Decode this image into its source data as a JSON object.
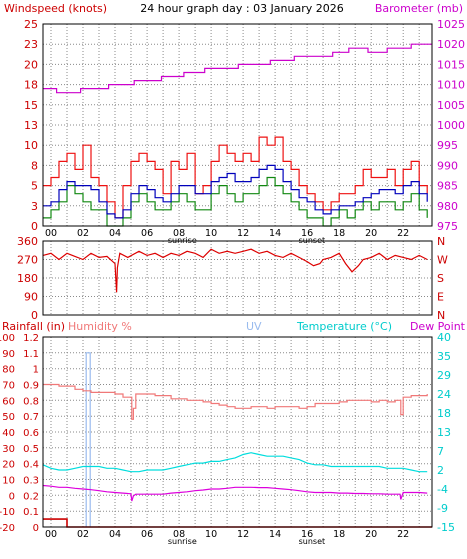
{
  "chart_data": [
    {
      "type": "line",
      "panel": "wind-baro",
      "title": "24 hour graph day : 03 January 2026",
      "ylabel_left": "Windspeed (knots)",
      "ylabel_right": "Barometer (mb)",
      "ylim_left": [
        0,
        25
      ],
      "ylim_right": [
        975,
        1025
      ],
      "y_ticks_left": [
        "0",
        "3",
        "5",
        "8",
        "10",
        "13",
        "15",
        "18",
        "20",
        "23",
        "25"
      ],
      "y_ticks_right": [
        "975",
        "980",
        "985",
        "990",
        "995",
        "1000",
        "1005",
        "1010",
        "1015",
        "1020",
        "1025"
      ],
      "x_ticks": [
        "00",
        "02",
        "04",
        "06",
        "08",
        "10",
        "12",
        "14",
        "16",
        "18",
        "20",
        "22"
      ],
      "x_markers": [
        "sunrise",
        "sunset"
      ],
      "x_marker_hours": [
        8.2,
        16.3
      ],
      "xlim": [
        -0.5,
        23.8
      ],
      "grid": true,
      "colors": {
        "gust": "#ee1010",
        "average": "#0000bb",
        "direction_avg": "#118811",
        "barometer": "#cc00cc",
        "text_left": "#cc0000",
        "text_right": "#cc00cc",
        "title": "#000000"
      },
      "series": [
        {
          "name": "Barometer (mb)",
          "axis": "right",
          "x": [
            -0.5,
            0.3,
            0.35,
            1.8,
            1.85,
            3.5,
            3.6,
            5.1,
            5.2,
            6.8,
            6.9,
            8.2,
            8.3,
            9.5,
            9.6,
            11.6,
            11.7,
            13.6,
            13.7,
            15.1,
            15.2,
            17.5,
            17.6,
            18.5,
            18.6,
            19.7,
            19.8,
            20.9,
            21.0,
            22.4,
            22.5,
            23.8
          ],
          "values": [
            1009,
            1009,
            1008,
            1008,
            1009,
            1009,
            1010,
            1010,
            1011,
            1011,
            1012,
            1012,
            1013,
            1013,
            1014,
            1014,
            1015,
            1015,
            1016,
            1016,
            1017,
            1017,
            1018,
            1018,
            1019,
            1019,
            1018,
            1018,
            1019,
            1019,
            1020,
            1020
          ]
        },
        {
          "name": "gust",
          "axis": "left",
          "x": [
            -0.5,
            0.0,
            0.5,
            1.0,
            1.5,
            2.0,
            2.5,
            3.0,
            3.5,
            4.0,
            4.5,
            5.0,
            5.5,
            6.0,
            6.5,
            7.0,
            7.5,
            8.0,
            8.5,
            9.0,
            9.5,
            10.0,
            10.5,
            11.0,
            11.5,
            12.0,
            12.5,
            13.0,
            13.5,
            14.0,
            14.5,
            15.0,
            15.5,
            16.0,
            16.5,
            17.0,
            17.5,
            18.0,
            18.5,
            19.0,
            19.5,
            20.0,
            20.5,
            21.0,
            21.5,
            22.0,
            22.5,
            23.0,
            23.5
          ],
          "values": [
            5,
            6,
            8,
            9,
            7,
            10,
            6,
            5,
            3,
            1,
            5,
            8,
            9,
            8,
            7,
            4,
            8,
            7,
            9,
            4,
            5,
            8,
            10,
            9,
            8,
            9,
            8,
            11,
            10,
            11,
            8,
            7,
            5,
            4,
            3,
            2,
            3,
            4,
            4,
            5,
            7,
            6,
            6,
            7,
            5,
            7,
            8,
            5,
            4
          ]
        },
        {
          "name": "average",
          "axis": "left",
          "x": [
            -0.5,
            0.0,
            0.5,
            1.0,
            1.5,
            2.0,
            2.5,
            3.0,
            3.5,
            4.0,
            4.5,
            5.0,
            5.5,
            6.0,
            6.5,
            7.0,
            7.5,
            8.0,
            8.5,
            9.0,
            9.5,
            10.0,
            10.5,
            11.0,
            11.5,
            12.0,
            12.5,
            13.0,
            13.5,
            14.0,
            14.5,
            15.0,
            15.5,
            16.0,
            16.5,
            17.0,
            17.5,
            18.0,
            18.5,
            19.0,
            19.5,
            20.0,
            20.5,
            21.0,
            21.5,
            22.0,
            22.5,
            23.0,
            23.5
          ],
          "values": [
            2.5,
            3,
            4.5,
            5.5,
            5,
            5,
            4.5,
            3,
            1.5,
            1,
            2,
            4,
            5,
            4.5,
            3.5,
            3,
            4,
            5,
            5,
            4,
            4,
            5.5,
            6,
            6.5,
            5.5,
            5.5,
            6,
            7,
            7.5,
            7,
            5.5,
            4.5,
            3.5,
            3,
            2,
            1.5,
            2,
            2.5,
            2.5,
            3,
            3.5,
            4,
            4.5,
            4.5,
            4,
            5,
            5.5,
            4,
            3
          ]
        },
        {
          "name": "direction_avg",
          "axis": "left",
          "x": [
            -0.5,
            0.0,
            0.5,
            1.0,
            1.5,
            2.0,
            2.5,
            3.0,
            3.5,
            4.0,
            4.5,
            5.0,
            5.5,
            6.0,
            6.5,
            7.0,
            7.5,
            8.0,
            8.5,
            9.0,
            9.5,
            10.0,
            10.5,
            11.0,
            11.5,
            12.0,
            12.5,
            13.0,
            13.5,
            14.0,
            14.5,
            15.0,
            15.5,
            16.0,
            16.5,
            17.0,
            17.5,
            18.0,
            18.5,
            19.0,
            19.5,
            20.0,
            20.5,
            21.0,
            21.5,
            22.0,
            22.5,
            23.0,
            23.5
          ],
          "values": [
            1,
            2,
            3,
            5,
            4,
            3,
            2,
            2,
            0,
            0,
            1,
            3,
            4,
            3,
            2,
            2,
            3,
            4,
            3,
            2,
            2,
            4,
            5,
            4,
            3,
            4,
            4,
            5,
            6,
            5,
            4,
            3,
            2,
            1,
            1,
            0,
            1,
            2,
            1,
            2,
            3,
            2,
            3,
            3,
            2,
            3,
            4,
            2,
            1
          ]
        }
      ]
    },
    {
      "type": "line",
      "panel": "wind-direction",
      "ylim_left": [
        0,
        360
      ],
      "y_ticks_left": [
        "360",
        "270",
        "180",
        "90",
        "0"
      ],
      "y_ticks_right": [
        "N",
        "W",
        "S",
        "E",
        "N"
      ],
      "xlim": [
        -0.5,
        23.8
      ],
      "grid": true,
      "colors": {
        "line": "#dd0000",
        "text": "#cc0000"
      },
      "series": [
        {
          "name": "Wind direction",
          "x": [
            -0.5,
            0.0,
            0.5,
            1.0,
            1.5,
            2.0,
            2.5,
            3.0,
            3.5,
            4.0,
            4.1,
            4.15,
            4.3,
            4.8,
            5.5,
            6.0,
            6.5,
            7.0,
            7.5,
            8.0,
            8.5,
            9.0,
            9.5,
            10.0,
            10.5,
            11.0,
            11.5,
            12.0,
            12.5,
            13.0,
            13.5,
            14.0,
            14.5,
            15.0,
            15.5,
            16.0,
            16.4,
            16.8,
            17.0,
            17.5,
            18.0,
            18.4,
            18.8,
            19.2,
            19.5,
            20.0,
            20.5,
            21.0,
            21.5,
            22.0,
            22.5,
            23.0,
            23.5
          ],
          "values": [
            290,
            300,
            270,
            300,
            285,
            270,
            300,
            280,
            285,
            250,
            110,
            230,
            300,
            280,
            310,
            290,
            300,
            280,
            300,
            290,
            310,
            300,
            280,
            320,
            300,
            310,
            300,
            310,
            320,
            300,
            310,
            290,
            280,
            300,
            280,
            260,
            240,
            250,
            270,
            280,
            300,
            250,
            210,
            240,
            270,
            280,
            300,
            270,
            290,
            280,
            270,
            290,
            270
          ]
        }
      ]
    },
    {
      "type": "line",
      "panel": "temp-humidity-rain",
      "ylabel_rain": "Rainfall (in)",
      "ylabel_humidity": "Humidity %",
      "ylabel_uv": "UV",
      "ylabel_temp": "Temperature (°C)",
      "ylabel_dew": "Dew Point",
      "ylim_humidity": [
        -20,
        100
      ],
      "ylim_rain": [
        0,
        1.2
      ],
      "ylim_temp": [
        -15,
        40
      ],
      "y_ticks_humidity": [
        "100",
        "90",
        "80",
        "70",
        "60",
        "50",
        "40",
        "30",
        "20",
        "10",
        "0",
        "-10",
        "-20"
      ],
      "y_ticks_rain": [
        "1.2",
        "1.1",
        "1",
        "0.9",
        "0.8",
        "0.7",
        "0.6",
        "0.5",
        "0.4",
        "0.3",
        "0.2",
        "0.1",
        "0"
      ],
      "y_ticks_temp": [
        "40",
        "35",
        "29",
        "24",
        "18",
        "13",
        "7",
        "2",
        "-4",
        "-9",
        "-15"
      ],
      "x_ticks": [
        "00",
        "02",
        "04",
        "06",
        "08",
        "10",
        "12",
        "14",
        "16",
        "18",
        "20",
        "22"
      ],
      "x_markers": [
        "sunrise",
        "sunset"
      ],
      "x_marker_hours": [
        8.2,
        16.3
      ],
      "xlim": [
        -0.5,
        23.8
      ],
      "grid": true,
      "colors": {
        "humidity": "#f07878",
        "temperature": "#00dddd",
        "dew_point": "#dd00dd",
        "rain": "#cc0000",
        "uv": "#99bbee",
        "text_rain": "#cc0000",
        "text_humidity": "#f07878",
        "text_uv": "#99bbee",
        "text_temp": "#00cccc",
        "text_dew": "#cc00cc"
      },
      "series": [
        {
          "name": "Humidity %",
          "axis": "humidity",
          "x": [
            -0.5,
            0.0,
            0.5,
            1.0,
            1.5,
            2.0,
            2.5,
            3.0,
            3.5,
            4.0,
            4.5,
            5.0,
            5.05,
            5.15,
            5.3,
            6.0,
            6.5,
            7.0,
            7.5,
            8.0,
            8.5,
            9.0,
            9.5,
            10.0,
            10.5,
            11.0,
            11.5,
            12.0,
            12.5,
            13.0,
            13.5,
            14.0,
            14.5,
            15.0,
            15.5,
            16.0,
            16.5,
            17.0,
            17.5,
            18.0,
            18.5,
            19.0,
            19.5,
            20.0,
            20.5,
            21.0,
            21.5,
            21.8,
            21.85,
            22.0,
            22.5,
            23.0,
            23.5
          ],
          "values": [
            70,
            70,
            69,
            69,
            67,
            66,
            65,
            65,
            65,
            64,
            62,
            62,
            48,
            55,
            64,
            64,
            63,
            63,
            61,
            61,
            60,
            60,
            59,
            58,
            57,
            56,
            55,
            55,
            56,
            56,
            55,
            56,
            56,
            56,
            55,
            56,
            58,
            58,
            58,
            59,
            60,
            60,
            60,
            59,
            60,
            59,
            60,
            60,
            51,
            62,
            63,
            63,
            64
          ]
        },
        {
          "name": "Temperature (°C)",
          "axis": "temp",
          "x": [
            -0.5,
            0.0,
            0.5,
            1.0,
            1.5,
            2.0,
            2.5,
            3.0,
            3.5,
            4.0,
            4.5,
            5.0,
            5.5,
            6.0,
            6.5,
            7.0,
            7.5,
            8.0,
            8.5,
            9.0,
            9.5,
            10.0,
            10.5,
            11.0,
            11.5,
            12.0,
            12.5,
            13.0,
            13.5,
            14.0,
            14.5,
            15.0,
            15.5,
            16.0,
            16.5,
            17.0,
            17.5,
            18.0,
            18.5,
            19.0,
            19.5,
            20.0,
            20.5,
            21.0,
            21.5,
            22.0,
            22.5,
            23.0,
            23.5
          ],
          "values": [
            3,
            2,
            1.5,
            1.5,
            2,
            2.5,
            2.5,
            2.5,
            2,
            2,
            1.5,
            1,
            1,
            1.5,
            1.5,
            1.5,
            2,
            2.5,
            3,
            3.5,
            3.5,
            4,
            4,
            4.5,
            5,
            6,
            6.5,
            6,
            5.5,
            5.5,
            5.5,
            5,
            4.5,
            3.5,
            3,
            3,
            2.5,
            2.5,
            2.5,
            2.5,
            2.5,
            2.5,
            2.5,
            2,
            2,
            2,
            1.5,
            1,
            1
          ]
        },
        {
          "name": "Dew Point",
          "axis": "temp",
          "x": [
            -0.5,
            0.0,
            0.5,
            1.0,
            1.5,
            2.0,
            2.5,
            3.0,
            3.5,
            4.0,
            4.5,
            5.0,
            5.05,
            5.15,
            5.3,
            6.0,
            6.5,
            7.0,
            7.5,
            8.0,
            8.5,
            9.0,
            9.5,
            10.0,
            10.5,
            11.0,
            11.5,
            12.0,
            12.5,
            13.0,
            13.5,
            14.0,
            14.5,
            15.0,
            15.5,
            16.0,
            16.5,
            17.0,
            17.5,
            18.0,
            18.5,
            19.0,
            19.5,
            20.0,
            20.5,
            21.0,
            21.5,
            21.8,
            21.85,
            22.0,
            22.5,
            23.0,
            23.5
          ],
          "values": [
            -3,
            -3.2,
            -3.5,
            -3.5,
            -3.8,
            -4,
            -4.2,
            -4.5,
            -4.8,
            -5,
            -5.2,
            -5.4,
            -7.5,
            -6,
            -5.5,
            -5.5,
            -5.5,
            -5.5,
            -5.2,
            -5,
            -4.8,
            -4.5,
            -4.3,
            -4,
            -4,
            -3.8,
            -3.5,
            -3.5,
            -3.5,
            -3.6,
            -3.6,
            -3.8,
            -4,
            -4.2,
            -4.5,
            -4.8,
            -5,
            -5,
            -5,
            -5.2,
            -5.2,
            -5.3,
            -5.3,
            -5.4,
            -5.4,
            -5.5,
            -5.5,
            -5.5,
            -7,
            -5,
            -5,
            -5,
            -5.2
          ]
        },
        {
          "name": "UV",
          "axis": "rain",
          "x": [
            2.2,
            2.2,
            2.45,
            2.45
          ],
          "values": [
            0,
            1.1,
            1.1,
            0
          ]
        },
        {
          "name": "Rainfall (in)",
          "axis": "rain",
          "x": [
            -0.5,
            1.0,
            1.0,
            23.8
          ],
          "values": [
            0.05,
            0.05,
            0,
            0
          ]
        }
      ]
    }
  ]
}
